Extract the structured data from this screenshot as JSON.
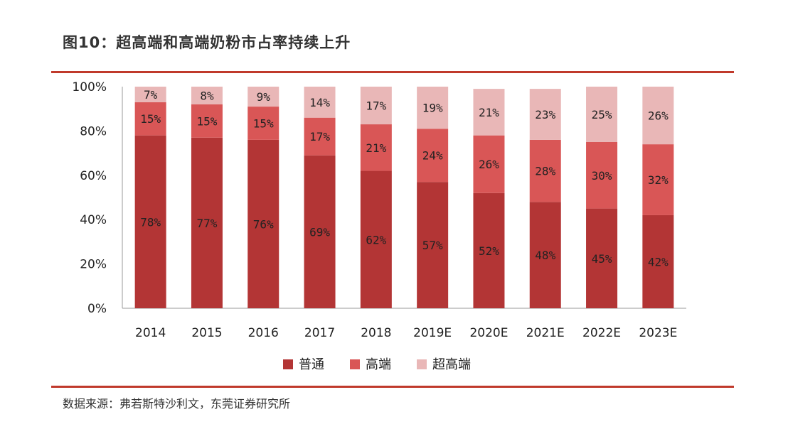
{
  "figure": {
    "title": "图10：超高端和高端奶粉市占率持续上升",
    "source": "数据来源：弗若斯特沙利文，东莞证券研究所"
  },
  "chart_data": {
    "type": "bar",
    "stacked": true,
    "categories": [
      "2014",
      "2015",
      "2016",
      "2017",
      "2018",
      "2019E",
      "2020E",
      "2021E",
      "2022E",
      "2023E"
    ],
    "series": [
      {
        "name": "普通",
        "color": "#b33535",
        "values": [
          78,
          77,
          76,
          69,
          62,
          57,
          52,
          48,
          45,
          42
        ]
      },
      {
        "name": "高端",
        "color": "#d95656",
        "values": [
          15,
          15,
          15,
          17,
          21,
          24,
          26,
          28,
          30,
          32
        ]
      },
      {
        "name": "超高端",
        "color": "#e9b7b7",
        "values": [
          7,
          8,
          9,
          14,
          17,
          19,
          21,
          23,
          25,
          26
        ]
      }
    ],
    "y_ticks": [
      "0%",
      "20%",
      "40%",
      "60%",
      "80%",
      "100%"
    ],
    "ylim": [
      0,
      100
    ],
    "value_suffix": "%",
    "legend_position": "bottom",
    "grid": false
  }
}
